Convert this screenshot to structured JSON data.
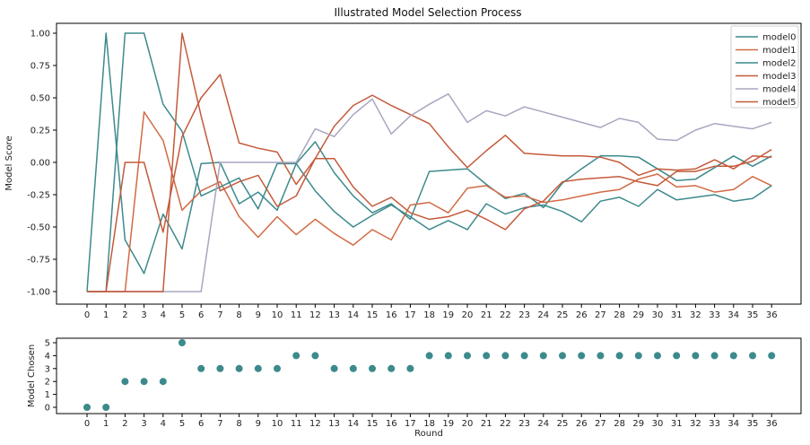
{
  "chart_data": [
    {
      "type": "line",
      "title": "Illustrated Model Selection Process",
      "xlabel": "",
      "ylabel": "Model Score",
      "ylim": [
        -1.0,
        1.0
      ],
      "yticks": [
        "-1.00",
        "-0.75",
        "-0.50",
        "-0.25",
        "0.00",
        "0.25",
        "0.50",
        "0.75",
        "1.00"
      ],
      "ytick_values": [
        -1.0,
        -0.75,
        -0.5,
        -0.25,
        0.0,
        0.25,
        0.5,
        0.75,
        1.0
      ],
      "x": [
        0,
        1,
        2,
        3,
        4,
        5,
        6,
        7,
        8,
        9,
        10,
        11,
        12,
        13,
        14,
        15,
        16,
        17,
        18,
        19,
        20,
        21,
        22,
        23,
        24,
        25,
        26,
        27,
        28,
        29,
        30,
        31,
        32,
        33,
        34,
        35,
        36
      ],
      "xtick_labels": [
        "0",
        "1",
        "2",
        "3",
        "4",
        "5",
        "6",
        "7",
        "8",
        "9",
        "10",
        "11",
        "12",
        "13",
        "14",
        "15",
        "16",
        "17",
        "18",
        "19",
        "20",
        "21",
        "22",
        "23",
        "24",
        "25",
        "26",
        "27",
        "28",
        "29",
        "30",
        "31",
        "32",
        "33",
        "34",
        "35",
        "36"
      ],
      "grid": false,
      "legend_position": "top-right",
      "series": [
        {
          "name": "model0",
          "color": "#3d8a8c",
          "values": [
            -1.0,
            1.0,
            -0.6,
            -0.86,
            -0.4,
            -0.67,
            -0.01,
            0.0,
            -0.32,
            -0.23,
            -0.37,
            -0.01,
            0.16,
            -0.08,
            -0.26,
            -0.39,
            -0.32,
            -0.44,
            -0.07,
            -0.06,
            -0.05,
            -0.17,
            -0.28,
            -0.24,
            -0.35,
            -0.16,
            -0.05,
            0.05,
            0.05,
            0.04,
            -0.05,
            -0.14,
            -0.13,
            -0.04,
            0.05,
            -0.03,
            0.05
          ]
        },
        {
          "name": "model1",
          "color": "#d26a45",
          "values": [
            -1.0,
            -1.0,
            -1.0,
            0.39,
            0.17,
            -0.37,
            -0.22,
            -0.15,
            -0.42,
            -0.58,
            -0.42,
            -0.56,
            -0.44,
            -0.55,
            -0.64,
            -0.52,
            -0.6,
            -0.33,
            -0.31,
            -0.39,
            -0.2,
            -0.18,
            -0.27,
            -0.26,
            -0.31,
            -0.29,
            -0.26,
            -0.23,
            -0.21,
            -0.13,
            -0.09,
            -0.19,
            -0.18,
            -0.23,
            -0.21,
            -0.11,
            -0.18
          ]
        },
        {
          "name": "model2",
          "color": "#3d8a8c",
          "values": [
            -1.0,
            -1.0,
            1.0,
            1.0,
            0.45,
            0.24,
            -0.26,
            -0.19,
            -0.12,
            -0.36,
            -0.01,
            -0.01,
            -0.22,
            -0.38,
            -0.5,
            -0.41,
            -0.33,
            -0.42,
            -0.52,
            -0.45,
            -0.52,
            -0.32,
            -0.4,
            -0.35,
            -0.33,
            -0.38,
            -0.46,
            -0.3,
            -0.27,
            -0.34,
            -0.21,
            -0.29,
            -0.27,
            -0.25,
            -0.3,
            -0.28,
            -0.18
          ]
        },
        {
          "name": "model3",
          "color": "#c45a3a",
          "values": [
            -1.0,
            -1.0,
            0.0,
            0.0,
            -0.54,
            0.2,
            0.5,
            0.68,
            0.15,
            0.11,
            0.08,
            -0.17,
            0.03,
            0.28,
            0.44,
            0.52,
            0.44,
            0.37,
            0.3,
            0.12,
            -0.04,
            0.09,
            0.21,
            0.07,
            0.06,
            0.05,
            0.05,
            0.04,
            0.0,
            -0.1,
            -0.05,
            -0.06,
            -0.05,
            0.02,
            -0.05,
            0.05,
            0.04
          ]
        },
        {
          "name": "model4",
          "color": "#a9a6bf",
          "values": [
            -1.0,
            -1.0,
            -1.0,
            -1.0,
            -1.0,
            -1.0,
            -1.0,
            0.0,
            0.0,
            0.0,
            0.0,
            0.0,
            0.26,
            0.2,
            0.37,
            0.49,
            0.22,
            0.36,
            0.45,
            0.53,
            0.31,
            0.4,
            0.36,
            0.43,
            0.39,
            0.35,
            0.31,
            0.27,
            0.34,
            0.31,
            0.18,
            0.17,
            0.25,
            0.3,
            0.28,
            0.26,
            0.31
          ]
        },
        {
          "name": "model5",
          "color": "#c45a3a",
          "values": [
            -1.0,
            -1.0,
            -1.0,
            -1.0,
            -1.0,
            1.0,
            0.36,
            -0.22,
            -0.15,
            -0.1,
            -0.34,
            -0.26,
            0.03,
            0.03,
            -0.19,
            -0.34,
            -0.27,
            -0.39,
            -0.44,
            -0.42,
            -0.37,
            -0.44,
            -0.52,
            -0.36,
            -0.3,
            -0.15,
            -0.13,
            -0.12,
            -0.11,
            -0.15,
            -0.18,
            -0.07,
            -0.07,
            -0.03,
            -0.03,
            0.01,
            0.1
          ]
        }
      ]
    },
    {
      "type": "scatter",
      "title": "",
      "xlabel": "Round",
      "ylabel": "Model Chosen",
      "ylim": [
        0,
        5
      ],
      "yticks": [
        "0",
        "1",
        "2",
        "3",
        "4",
        "5"
      ],
      "ytick_values": [
        0,
        1,
        2,
        3,
        4,
        5
      ],
      "x": [
        0,
        1,
        2,
        3,
        4,
        5,
        6,
        7,
        8,
        9,
        10,
        11,
        12,
        13,
        14,
        15,
        16,
        17,
        18,
        19,
        20,
        21,
        22,
        23,
        24,
        25,
        26,
        27,
        28,
        29,
        30,
        31,
        32,
        33,
        34,
        35,
        36
      ],
      "xtick_labels": [
        "0",
        "1",
        "2",
        "3",
        "4",
        "5",
        "6",
        "7",
        "8",
        "9",
        "10",
        "11",
        "12",
        "13",
        "14",
        "15",
        "16",
        "17",
        "18",
        "19",
        "20",
        "21",
        "22",
        "23",
        "24",
        "25",
        "26",
        "27",
        "28",
        "29",
        "30",
        "31",
        "32",
        "33",
        "34",
        "35",
        "36"
      ],
      "grid": false,
      "marker_color": "#3d8a8c",
      "values": [
        0,
        0,
        2,
        2,
        2,
        5,
        3,
        3,
        3,
        3,
        3,
        4,
        4,
        3,
        3,
        3,
        3,
        3,
        4,
        4,
        4,
        4,
        4,
        4,
        4,
        4,
        4,
        4,
        4,
        4,
        4,
        4,
        4,
        4,
        4,
        4,
        4
      ]
    }
  ]
}
